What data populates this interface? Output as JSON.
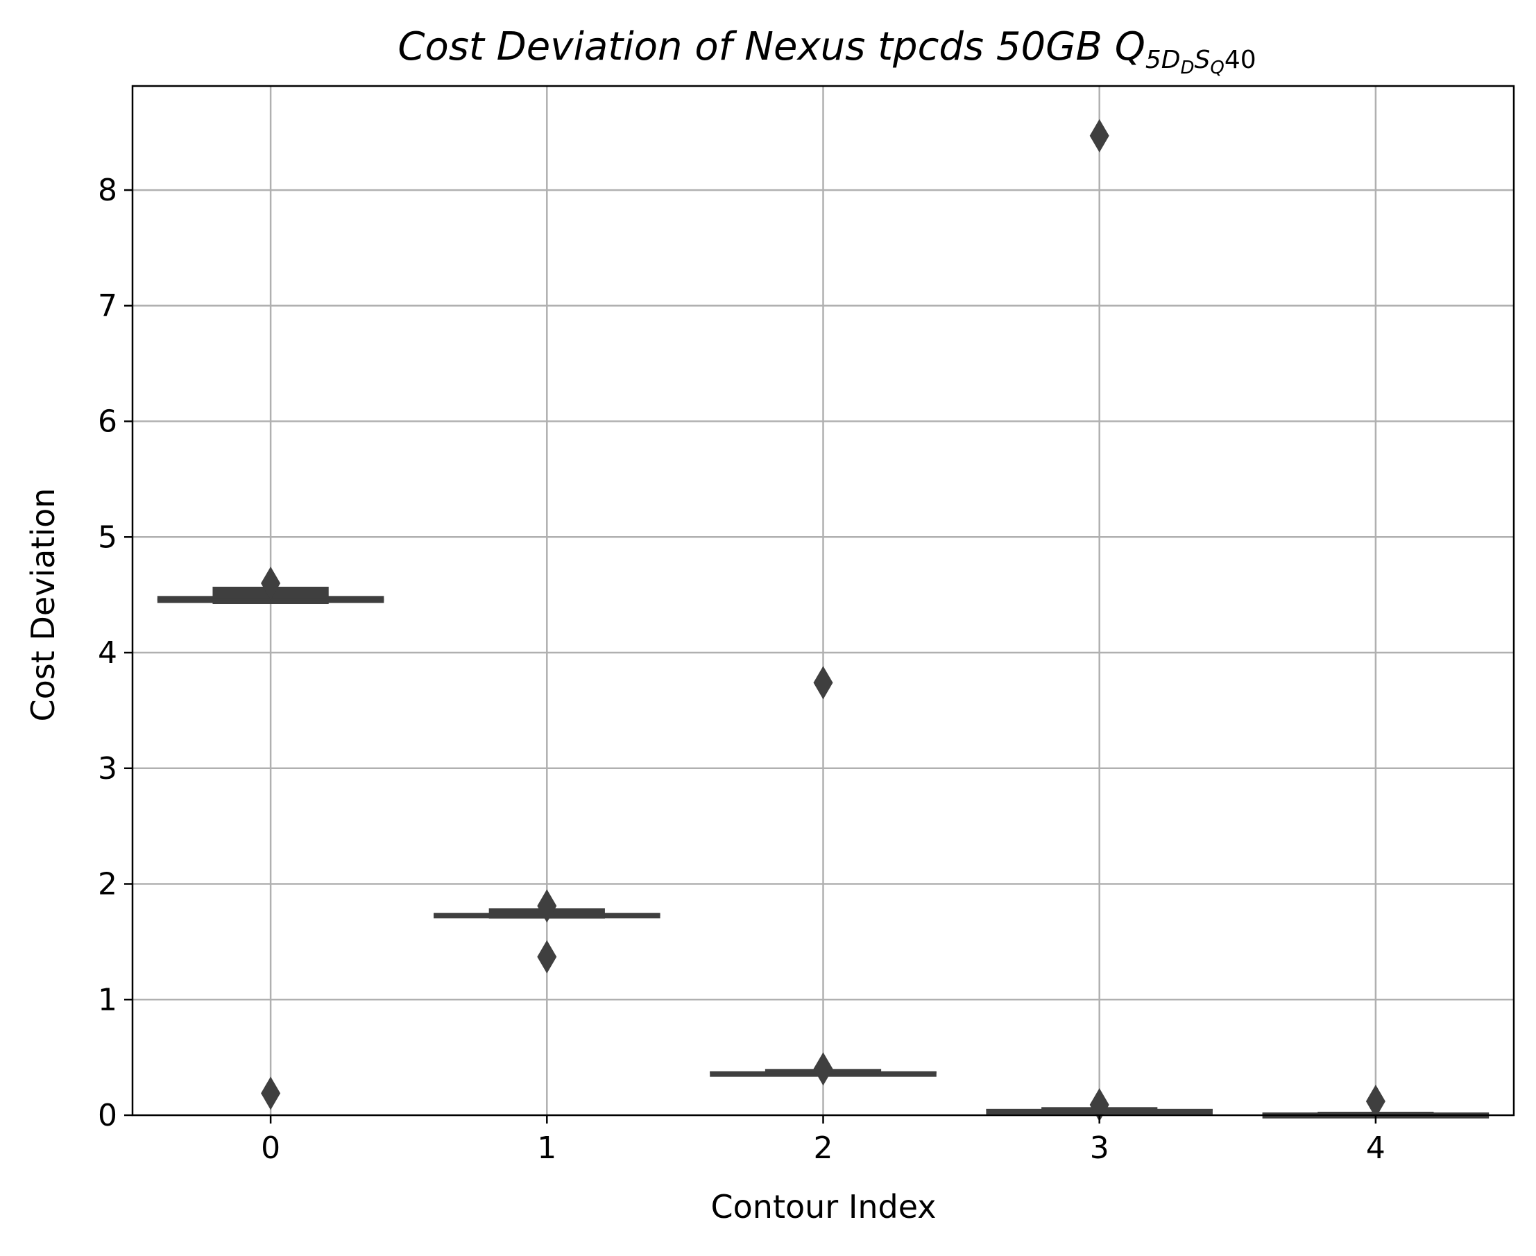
{
  "chart_data": {
    "type": "box",
    "title": {
      "main": "Cost Deviation of Nexus tpcds  50GB  ",
      "q": "Q",
      "sub1": "5D",
      "sub2": "D",
      "sub3": "S",
      "sub4": "Q",
      "tail": "40"
    },
    "xlabel": "Contour Index",
    "ylabel": "Cost Deviation",
    "categories": [
      "0",
      "1",
      "2",
      "3",
      "4"
    ],
    "ylim": [
      0,
      8.9
    ],
    "yticks": [
      "0",
      "1",
      "2",
      "3",
      "4",
      "5",
      "6",
      "7",
      "8"
    ],
    "grid": true,
    "color": "#3f3f3f",
    "boxes": [
      {
        "k_lower": 4.42,
        "q1": 4.43,
        "median": 4.46,
        "q3": 4.49,
        "k_upper": 4.57,
        "outliers": [
          0.19,
          4.6
        ]
      },
      {
        "k_lower": 1.7,
        "q1": 1.71,
        "median": 1.73,
        "q3": 1.75,
        "k_upper": 1.79,
        "outliers": [
          1.37,
          1.81
        ]
      },
      {
        "k_lower": 0.35,
        "q1": 0.36,
        "median": 0.37,
        "q3": 0.38,
        "k_upper": 0.4,
        "outliers": [
          3.74,
          0.4
        ]
      },
      {
        "k_lower": 0.03,
        "q1": 0.035,
        "median": 0.045,
        "q3": 0.055,
        "k_upper": 0.07,
        "outliers": [
          8.47,
          0.09
        ]
      },
      {
        "k_lower": 0.01,
        "q1": 0.012,
        "median": 0.015,
        "q3": 0.02,
        "k_upper": 0.03,
        "outliers": [
          0.12
        ]
      }
    ]
  }
}
